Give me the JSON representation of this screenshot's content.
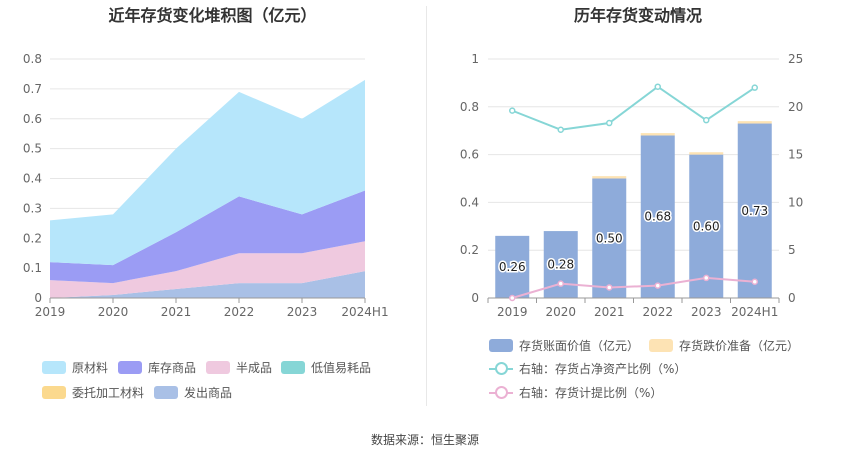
{
  "left_chart": {
    "title": "近年存货变化堆积图（亿元）",
    "chart_data": {
      "type": "area",
      "stacked": true,
      "categories": [
        "2019",
        "2020",
        "2021",
        "2022",
        "2023",
        "2024H1"
      ],
      "ylim": [
        0,
        0.8
      ],
      "yticks": [
        "0",
        "0.1",
        "0.2",
        "0.3",
        "0.4",
        "0.5",
        "0.6",
        "0.7",
        "0.8"
      ],
      "series": [
        {
          "name": "原材料",
          "color": "#b6e6fb",
          "values": [
            0.14,
            0.17,
            0.28,
            0.35,
            0.32,
            0.37
          ]
        },
        {
          "name": "库存商品",
          "color": "#9b9cf4",
          "values": [
            0.06,
            0.06,
            0.13,
            0.19,
            0.13,
            0.17
          ]
        },
        {
          "name": "半成品",
          "color": "#efc9df",
          "values": [
            0.06,
            0.04,
            0.06,
            0.1,
            0.1,
            0.1
          ]
        },
        {
          "name": "低值易耗品",
          "color": "#86d6d6",
          "values": [
            0.0,
            0.0,
            0.0,
            0.0,
            0.0,
            0.0
          ]
        },
        {
          "name": "委托加工材料",
          "color": "#fbd98e",
          "values": [
            0.0,
            0.0,
            0.0,
            0.0,
            0.0,
            0.0
          ]
        },
        {
          "name": "发出商品",
          "color": "#a9c0e6",
          "values": [
            0.0,
            0.01,
            0.03,
            0.05,
            0.05,
            0.09
          ]
        }
      ],
      "legend_position": "bottom",
      "grid": true
    }
  },
  "right_chart": {
    "title": "历年存货变动情况",
    "chart_data": {
      "type": "bar",
      "categories": [
        "2019",
        "2020",
        "2021",
        "2022",
        "2023",
        "2024H1"
      ],
      "ylim": [
        0,
        1
      ],
      "yticks": [
        "0",
        "0.2",
        "0.4",
        "0.6",
        "0.8",
        "1"
      ],
      "y2lim": [
        0,
        25
      ],
      "y2ticks": [
        "0",
        "5",
        "10",
        "15",
        "20",
        "25"
      ],
      "bars": [
        {
          "name": "存货账面价值（亿元）",
          "color": "#8eabda",
          "values": [
            0.26,
            0.28,
            0.5,
            0.68,
            0.6,
            0.73
          ],
          "labels": [
            "0.26",
            "0.28",
            "0.50",
            "0.68",
            "0.60",
            "0.73"
          ]
        },
        {
          "name": "存货跌价准备（亿元）",
          "color": "#fde3b4",
          "values": [
            0.0,
            0.0,
            0.01,
            0.01,
            0.01,
            0.01
          ]
        }
      ],
      "lines": [
        {
          "name": "右轴：存货占净资产比例（%）",
          "color": "#86d6d6",
          "axis": "right",
          "values": [
            19.6,
            17.6,
            18.3,
            22.1,
            18.6,
            22.0
          ]
        },
        {
          "name": "右轴：存货计提比例（%）",
          "color": "#ebb1d3",
          "axis": "right",
          "values": [
            0.0,
            1.5,
            1.1,
            1.3,
            2.1,
            1.7
          ]
        }
      ],
      "legend_position": "bottom",
      "grid": true
    }
  },
  "source": "数据来源：恒生聚源"
}
